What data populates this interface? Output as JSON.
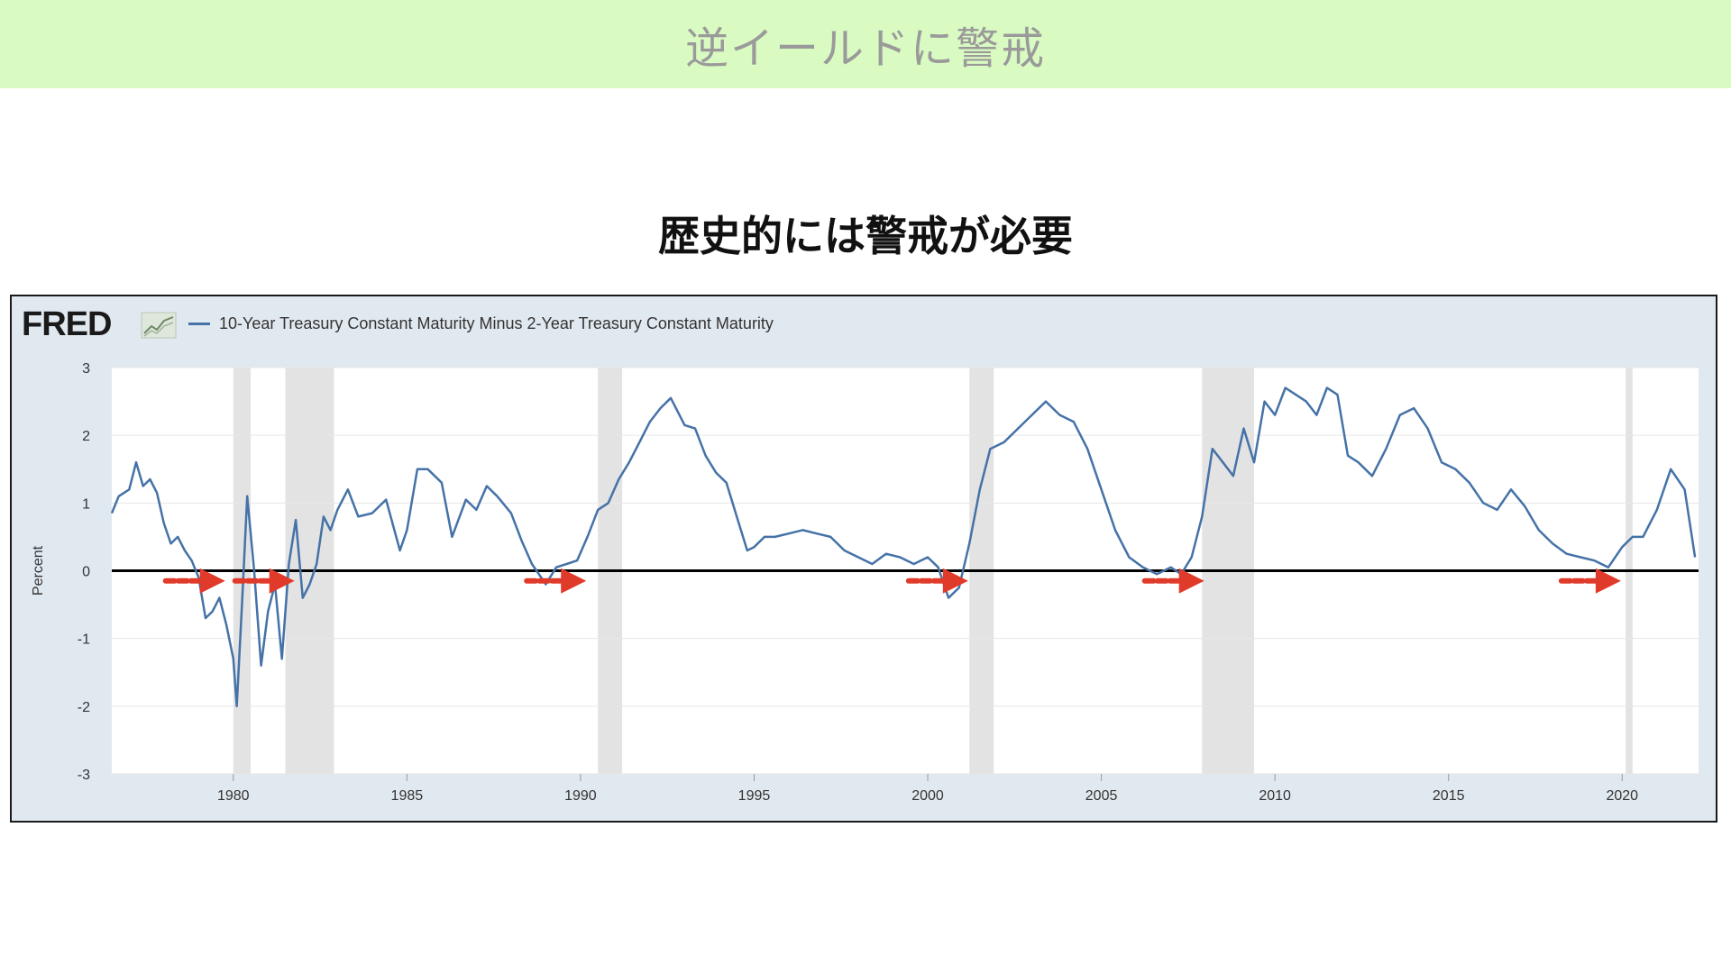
{
  "header": {
    "title": "逆イールドに警戒"
  },
  "subtitle": "歴史的には警戒が必要",
  "logo": {
    "text": "FRED",
    "icon": "fred-line-chart-icon"
  },
  "colors": {
    "banner": "#d9fbc2",
    "series": "#4572a7",
    "arrow": "#e03a2a",
    "recession": "#e3e3e3",
    "zero_line": "#000000"
  },
  "chart_data": {
    "type": "line",
    "title": "",
    "xlabel": "",
    "ylabel": "Percent",
    "xlim": [
      1976.5,
      2022.2
    ],
    "ylim": [
      -3,
      3
    ],
    "x_ticks": [
      1980,
      1985,
      1990,
      1995,
      2000,
      2005,
      2010,
      2015,
      2020
    ],
    "x_tick_labels": [
      "1980",
      "1985",
      "1990",
      "1995",
      "2000",
      "2005",
      "2010",
      "2015",
      "2020"
    ],
    "y_ticks": [
      -3,
      -2,
      -1,
      0,
      1,
      2,
      3
    ],
    "y_tick_labels": [
      "-3",
      "-2",
      "-1",
      "0",
      "1",
      "2",
      "3"
    ],
    "grid": "horizontal",
    "legend_position": "top-left",
    "series": [
      {
        "name": "10-Year Treasury Constant Maturity Minus 2-Year Treasury Constant Maturity",
        "x": [
          1976.5,
          1976.7,
          1977.0,
          1977.2,
          1977.4,
          1977.6,
          1977.8,
          1978.0,
          1978.2,
          1978.4,
          1978.6,
          1978.8,
          1979.0,
          1979.2,
          1979.4,
          1979.6,
          1979.8,
          1980.0,
          1980.1,
          1980.25,
          1980.4,
          1980.6,
          1980.8,
          1981.0,
          1981.2,
          1981.4,
          1981.6,
          1981.8,
          1982.0,
          1982.2,
          1982.4,
          1982.6,
          1982.8,
          1983.0,
          1983.3,
          1983.6,
          1984.0,
          1984.4,
          1984.8,
          1985.0,
          1985.3,
          1985.6,
          1986.0,
          1986.3,
          1986.7,
          1987.0,
          1987.3,
          1987.6,
          1988.0,
          1988.3,
          1988.6,
          1989.0,
          1989.3,
          1989.6,
          1989.9,
          1990.2,
          1990.5,
          1990.8,
          1991.1,
          1991.4,
          1991.7,
          1992.0,
          1992.3,
          1992.6,
          1993.0,
          1993.3,
          1993.6,
          1993.9,
          1994.2,
          1994.5,
          1994.8,
          1995.0,
          1995.3,
          1995.6,
          1996.0,
          1996.4,
          1996.8,
          1997.2,
          1997.6,
          1998.0,
          1998.4,
          1998.8,
          1999.2,
          1999.6,
          2000.0,
          2000.3,
          2000.6,
          2000.9,
          2001.2,
          2001.5,
          2001.8,
          2002.2,
          2002.6,
          2003.0,
          2003.4,
          2003.8,
          2004.2,
          2004.6,
          2005.0,
          2005.4,
          2005.8,
          2006.2,
          2006.6,
          2007.0,
          2007.3,
          2007.6,
          2007.9,
          2008.2,
          2008.5,
          2008.8,
          2009.1,
          2009.4,
          2009.7,
          2010.0,
          2010.3,
          2010.6,
          2010.9,
          2011.2,
          2011.5,
          2011.8,
          2012.1,
          2012.4,
          2012.8,
          2013.2,
          2013.6,
          2014.0,
          2014.4,
          2014.8,
          2015.2,
          2015.6,
          2016.0,
          2016.4,
          2016.8,
          2017.2,
          2017.6,
          2018.0,
          2018.4,
          2018.8,
          2019.2,
          2019.6,
          2020.0,
          2020.3,
          2020.6,
          2021.0,
          2021.4,
          2021.8,
          2022.1
        ],
        "y": [
          0.85,
          1.1,
          1.2,
          1.6,
          1.25,
          1.35,
          1.15,
          0.7,
          0.4,
          0.5,
          0.3,
          0.15,
          -0.1,
          -0.7,
          -0.6,
          -0.4,
          -0.8,
          -1.3,
          -2.0,
          -0.5,
          1.1,
          0.0,
          -1.4,
          -0.6,
          -0.2,
          -1.3,
          0.1,
          0.75,
          -0.4,
          -0.2,
          0.1,
          0.8,
          0.6,
          0.9,
          1.2,
          0.8,
          0.85,
          1.05,
          0.3,
          0.6,
          1.5,
          1.5,
          1.3,
          0.5,
          1.05,
          0.9,
          1.25,
          1.1,
          0.85,
          0.45,
          0.1,
          -0.2,
          0.05,
          0.1,
          0.15,
          0.5,
          0.9,
          1.0,
          1.35,
          1.6,
          1.9,
          2.2,
          2.4,
          2.55,
          2.15,
          2.1,
          1.7,
          1.45,
          1.3,
          0.8,
          0.3,
          0.35,
          0.5,
          0.5,
          0.55,
          0.6,
          0.55,
          0.5,
          0.3,
          0.2,
          0.1,
          0.25,
          0.2,
          0.1,
          0.2,
          0.05,
          -0.4,
          -0.25,
          0.4,
          1.2,
          1.8,
          1.9,
          2.1,
          2.3,
          2.5,
          2.3,
          2.2,
          1.8,
          1.2,
          0.6,
          0.2,
          0.05,
          -0.05,
          0.05,
          -0.05,
          0.2,
          0.8,
          1.8,
          1.6,
          1.4,
          2.1,
          1.6,
          2.5,
          2.3,
          2.7,
          2.6,
          2.5,
          2.3,
          2.7,
          2.6,
          1.7,
          1.6,
          1.4,
          1.8,
          2.3,
          2.4,
          2.1,
          1.6,
          1.5,
          1.3,
          1.0,
          0.9,
          1.2,
          0.95,
          0.6,
          0.4,
          0.25,
          0.2,
          0.15,
          0.05,
          0.35,
          0.5,
          0.5,
          0.9,
          1.5,
          1.2,
          0.2
        ]
      }
    ],
    "recessions": [
      [
        1980.0,
        1980.5
      ],
      [
        1981.5,
        1982.9
      ],
      [
        1990.5,
        1991.2
      ],
      [
        2001.2,
        2001.9
      ],
      [
        2007.9,
        2009.4
      ],
      [
        2020.1,
        2020.3
      ]
    ],
    "arrows": [
      1979.4,
      1981.4,
      1989.8,
      2000.8,
      2007.6,
      2019.6
    ]
  }
}
